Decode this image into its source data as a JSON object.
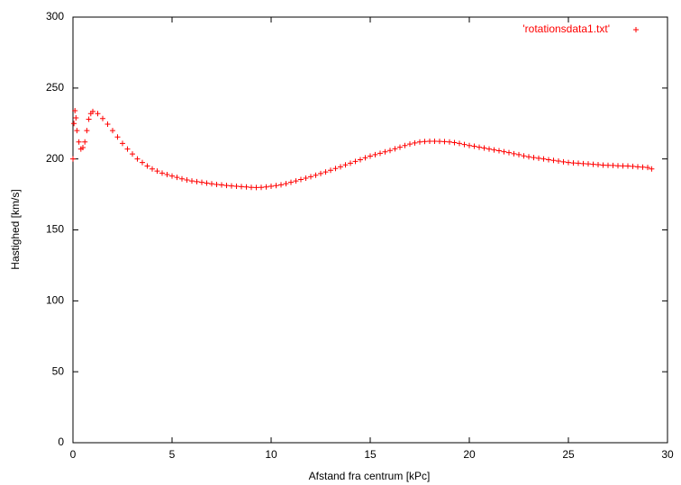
{
  "chart_data": {
    "type": "scatter",
    "xlabel": "Afstand fra centrum [kPc]",
    "ylabel": "Hastighed  [km/s]",
    "xlim": [
      0,
      30
    ],
    "xticks": [
      0,
      5,
      10,
      15,
      20,
      25,
      30
    ],
    "ylim": [
      0,
      300
    ],
    "yticks": [
      0,
      50,
      100,
      150,
      200,
      250,
      300
    ],
    "legend": "top right",
    "marker": "+",
    "series": [
      {
        "name": "'rotationsdata1.txt'",
        "color": "#ff0000",
        "x": [
          0,
          0.05,
          0.1,
          0.15,
          0.2,
          0.3,
          0.4,
          0.5,
          0.6,
          0.7,
          0.8,
          0.9,
          1.0,
          1.25,
          1.5,
          1.75,
          2.0,
          2.25,
          2.5,
          2.75,
          3.0,
          3.25,
          3.5,
          3.75,
          4.0,
          4.25,
          4.5,
          4.75,
          5.0,
          5.25,
          5.5,
          5.75,
          6.0,
          6.25,
          6.5,
          6.75,
          7.0,
          7.25,
          7.5,
          7.75,
          8.0,
          8.25,
          8.5,
          8.75,
          9.0,
          9.25,
          9.5,
          9.75,
          10.0,
          10.25,
          10.5,
          10.75,
          11.0,
          11.25,
          11.5,
          11.75,
          12.0,
          12.25,
          12.5,
          12.75,
          13.0,
          13.25,
          13.5,
          13.75,
          14.0,
          14.25,
          14.5,
          14.75,
          15.0,
          15.25,
          15.5,
          15.75,
          16.0,
          16.25,
          16.5,
          16.75,
          17.0,
          17.25,
          17.5,
          17.75,
          18.0,
          18.25,
          18.5,
          18.75,
          19.0,
          19.25,
          19.5,
          19.75,
          20.0,
          20.25,
          20.5,
          20.75,
          21.0,
          21.25,
          21.5,
          21.75,
          22.0,
          22.25,
          22.5,
          22.75,
          23.0,
          23.25,
          23.5,
          23.75,
          24.0,
          24.25,
          24.5,
          24.75,
          25.0,
          25.25,
          25.5,
          25.75,
          26.0,
          26.25,
          26.5,
          26.75,
          27.0,
          27.25,
          27.5,
          27.75,
          28.0,
          28.25,
          28.5,
          28.75,
          29.0,
          29.2
        ],
        "values": [
          200,
          225,
          234,
          229,
          220,
          212,
          207,
          208,
          212,
          220,
          228,
          232,
          233.5,
          232,
          228.5,
          224.5,
          220,
          215.5,
          211,
          207,
          203.5,
          200,
          197.5,
          195,
          193,
          191.5,
          190,
          189,
          188,
          187,
          186,
          185.2,
          184.5,
          184,
          183.5,
          183,
          182.5,
          182,
          181.7,
          181.3,
          181,
          180.8,
          180.5,
          180.3,
          180,
          179.9,
          180,
          180.3,
          180.8,
          181.2,
          181.8,
          182.6,
          183.5,
          184.5,
          185.5,
          186.5,
          187.5,
          188.5,
          189.7,
          190.8,
          192,
          193.3,
          194.5,
          195.8,
          197,
          198.3,
          199.5,
          200.8,
          202,
          203,
          204,
          205,
          206,
          207.2,
          208.3,
          209.5,
          210.5,
          211.3,
          212,
          212.3,
          212.5,
          212.5,
          212.4,
          212.2,
          212,
          211.5,
          211,
          210.2,
          209.5,
          209,
          208.3,
          207.7,
          207,
          206.4,
          205.8,
          205.1,
          204.5,
          203.7,
          203,
          202.2,
          201.5,
          201,
          200.5,
          200,
          199.5,
          199,
          198.5,
          198,
          197.5,
          197.2,
          197,
          196.7,
          196.5,
          196.2,
          196,
          195.7,
          195.5,
          195.4,
          195.2,
          195.1,
          195,
          194.8,
          194.5,
          194.2,
          194,
          193
        ]
      }
    ]
  }
}
